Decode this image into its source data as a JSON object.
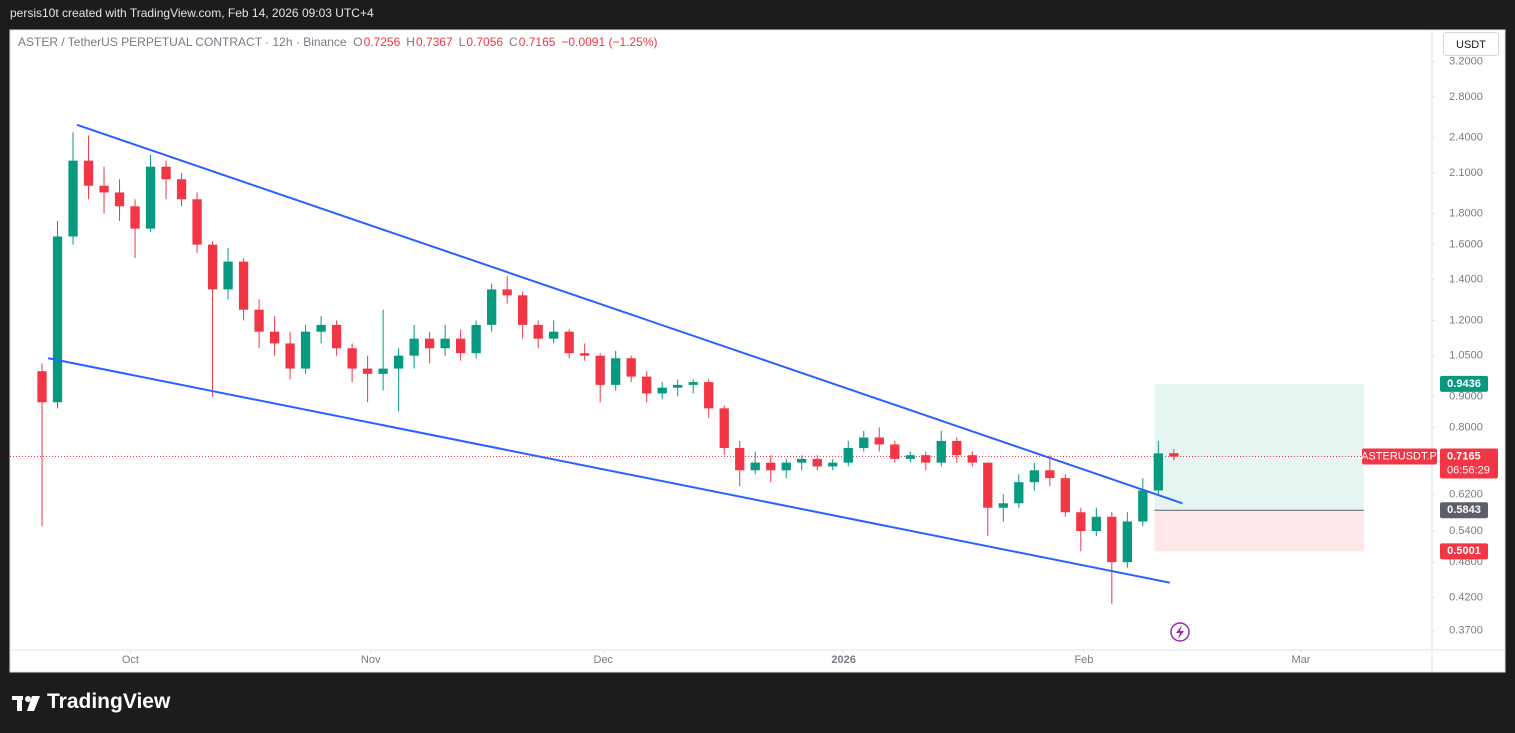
{
  "header": {
    "credit": "persis10t created with TradingView.com, Feb 14, 2026 09:03 UTC+4"
  },
  "chart_data": {
    "type": "candlestick",
    "legend": {
      "symbol": "ASTER / TetherUS PERPETUAL CONTRACT · 12h · Binance",
      "ohlc": [
        {
          "label": "O",
          "value": 0.7256
        },
        {
          "label": "H",
          "value": 0.7367
        },
        {
          "label": "L",
          "value": 0.7056
        },
        {
          "label": "C",
          "value": 0.7165
        }
      ],
      "change": "−0.0091 (−1.25%)"
    },
    "currency": "USDT",
    "log_scale": true,
    "grid": false,
    "up_color": "#089981",
    "down_color": "#f23645",
    "x": [
      0,
      2,
      4,
      6,
      8,
      10,
      12,
      14,
      16,
      18,
      20,
      22,
      24,
      26,
      28,
      30,
      32,
      34,
      36,
      38,
      40,
      42,
      44,
      46,
      48,
      50,
      52,
      54,
      56,
      58,
      60,
      62,
      64,
      66,
      68,
      70,
      72,
      74,
      76,
      78,
      80,
      82,
      84,
      86,
      88,
      90,
      92,
      94,
      96,
      98,
      100,
      102,
      104,
      106,
      108,
      110,
      112,
      114,
      116,
      118,
      120,
      122,
      124,
      126,
      128,
      130,
      132,
      134,
      136,
      138,
      140,
      142,
      144,
      146
    ],
    "open": [
      0.99,
      0.88,
      1.65,
      2.2,
      2.0,
      1.95,
      1.85,
      1.7,
      2.15,
      2.05,
      1.9,
      1.6,
      1.35,
      1.5,
      1.25,
      1.15,
      1.1,
      1.0,
      1.15,
      1.18,
      1.08,
      1.0,
      0.98,
      1.0,
      1.05,
      1.12,
      1.08,
      1.12,
      1.06,
      1.18,
      1.35,
      1.32,
      1.18,
      1.12,
      1.15,
      1.06,
      1.05,
      0.94,
      1.04,
      0.97,
      0.91,
      0.93,
      0.94,
      0.95,
      0.86,
      0.74,
      0.68,
      0.7,
      0.68,
      0.7,
      0.71,
      0.69,
      0.7,
      0.74,
      0.77,
      0.75,
      0.71,
      0.72,
      0.7,
      0.76,
      0.72,
      0.7,
      0.59,
      0.6,
      0.65,
      0.68,
      0.66,
      0.58,
      0.54,
      0.57,
      0.48,
      0.56,
      0.63,
      0.7256
    ],
    "high": [
      1.02,
      1.75,
      2.45,
      2.42,
      2.15,
      2.05,
      1.9,
      2.25,
      2.2,
      2.1,
      1.95,
      1.62,
      1.58,
      1.52,
      1.3,
      1.22,
      1.15,
      1.18,
      1.22,
      1.2,
      1.1,
      1.05,
      1.25,
      1.08,
      1.18,
      1.15,
      1.18,
      1.16,
      1.2,
      1.38,
      1.42,
      1.34,
      1.2,
      1.2,
      1.16,
      1.1,
      1.06,
      1.07,
      1.05,
      0.99,
      0.95,
      0.96,
      0.96,
      0.96,
      0.87,
      0.76,
      0.73,
      0.72,
      0.71,
      0.72,
      0.72,
      0.71,
      0.76,
      0.79,
      0.8,
      0.76,
      0.73,
      0.73,
      0.79,
      0.77,
      0.73,
      0.7,
      0.62,
      0.67,
      0.7,
      0.72,
      0.67,
      0.59,
      0.59,
      0.58,
      0.58,
      0.66,
      0.76,
      0.7367
    ],
    "low": [
      0.55,
      0.86,
      1.6,
      1.9,
      1.8,
      1.75,
      1.52,
      1.68,
      1.9,
      1.85,
      1.55,
      0.9,
      1.3,
      1.2,
      1.08,
      1.05,
      0.96,
      0.98,
      1.1,
      1.05,
      0.95,
      0.88,
      0.92,
      0.85,
      1.0,
      1.02,
      1.05,
      1.03,
      1.04,
      1.15,
      1.28,
      1.12,
      1.08,
      1.1,
      1.04,
      1.03,
      0.88,
      0.92,
      0.95,
      0.88,
      0.89,
      0.9,
      0.91,
      0.83,
      0.72,
      0.64,
      0.67,
      0.65,
      0.66,
      0.68,
      0.68,
      0.68,
      0.69,
      0.73,
      0.73,
      0.7,
      0.7,
      0.68,
      0.69,
      0.7,
      0.69,
      0.53,
      0.56,
      0.59,
      0.63,
      0.64,
      0.57,
      0.5,
      0.53,
      0.41,
      0.47,
      0.55,
      0.62,
      0.7056
    ],
    "close": [
      0.88,
      1.65,
      2.2,
      2.0,
      1.95,
      1.85,
      1.7,
      2.15,
      2.05,
      1.9,
      1.6,
      1.35,
      1.5,
      1.25,
      1.15,
      1.1,
      1.0,
      1.15,
      1.18,
      1.08,
      1.0,
      0.98,
      1.0,
      1.05,
      1.12,
      1.08,
      1.12,
      1.06,
      1.18,
      1.35,
      1.32,
      1.18,
      1.12,
      1.15,
      1.06,
      1.05,
      0.94,
      1.04,
      0.97,
      0.91,
      0.93,
      0.94,
      0.95,
      0.86,
      0.74,
      0.68,
      0.7,
      0.68,
      0.7,
      0.71,
      0.69,
      0.7,
      0.74,
      0.77,
      0.75,
      0.71,
      0.72,
      0.7,
      0.76,
      0.72,
      0.7,
      0.59,
      0.6,
      0.65,
      0.68,
      0.66,
      0.58,
      0.54,
      0.57,
      0.48,
      0.56,
      0.63,
      0.725,
      0.7165
    ],
    "xlim": [
      -4.13,
      179.3
    ],
    "xticks": [
      {
        "value": 11.4,
        "label": "Oct"
      },
      {
        "value": 42.4,
        "label": "Nov"
      },
      {
        "value": 72.4,
        "label": "Dec"
      },
      {
        "value": 103.4,
        "label": "2026"
      },
      {
        "value": 134.4,
        "label": "Feb"
      },
      {
        "value": 162.4,
        "label": "Mar"
      }
    ],
    "ylim": [
      0.344,
      3.61
    ],
    "yticks": [
      {
        "value": 0.37,
        "label": "0.3700"
      },
      {
        "value": 0.42,
        "label": "0.4200"
      },
      {
        "value": 0.48,
        "label": "0.4800"
      },
      {
        "value": 0.54,
        "label": "0.5400"
      },
      {
        "value": 0.62,
        "label": "0.6200"
      },
      {
        "value": 0.8,
        "label": "0.8000"
      },
      {
        "value": 0.9,
        "label": "0.9000"
      },
      {
        "value": 1.05,
        "label": "1.0500"
      },
      {
        "value": 1.2,
        "label": "1.2000"
      },
      {
        "value": 1.4,
        "label": "1.4000"
      },
      {
        "value": 1.6,
        "label": "1.6000"
      },
      {
        "value": 1.8,
        "label": "1.8000"
      },
      {
        "value": 2.1,
        "label": "2.1000"
      },
      {
        "value": 2.4,
        "label": "2.4000"
      },
      {
        "value": 2.8,
        "label": "2.8000"
      },
      {
        "value": 3.2,
        "label": "3.2000"
      }
    ],
    "trendlines": [
      {
        "color": "#2962ff",
        "x": [
          4.5,
          147.1
        ],
        "values": [
          2.52,
          0.6
        ]
      },
      {
        "color": "#2962ff",
        "x": [
          0.8,
          145.5
        ],
        "values": [
          1.04,
          0.444
        ]
      }
    ],
    "position": {
      "x": [
        143.5,
        170.5
      ],
      "entry": 0.5843,
      "target": 0.9436,
      "stop": 0.5001
    },
    "last_price": {
      "value": 0.7165,
      "countdown": "06:56:29",
      "symbol": "ASTERUSDT.P"
    }
  },
  "footer": {
    "brand": "TradingView"
  }
}
